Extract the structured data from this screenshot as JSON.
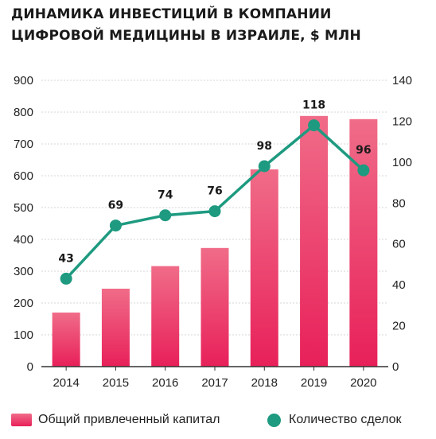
{
  "title": {
    "line1": "ДИНАМИКА ИНВЕСТИЦИЙ В КОМПАНИИ",
    "line2": "ЦИФРОВОЙ МЕДИЦИНЫ В ИЗРАИЛЕ, $ МЛН"
  },
  "colors": {
    "bar_top": "#f06c88",
    "bar_bottom": "#e8205a",
    "line": "#1e9a80",
    "grid": "#d5d5d5"
  },
  "chart_data": {
    "type": "bar",
    "title": "ДИНАМИКА ИНВЕСТИЦИЙ В КОМПАНИИ ЦИФРОВОЙ МЕДИЦИНЫ В ИЗРАИЛЕ, $ МЛН",
    "categories": [
      "2014",
      "2015",
      "2016",
      "2017",
      "2018",
      "2019",
      "2020"
    ],
    "series": [
      {
        "name": "Общий привлеченный капитал",
        "type": "bar",
        "axis": "left",
        "values": [
          170,
          245,
          316,
          373,
          620,
          788,
          778
        ]
      },
      {
        "name": "Количество сделок",
        "type": "line",
        "axis": "right",
        "values": [
          43,
          69,
          74,
          76,
          98,
          118,
          96
        ]
      }
    ],
    "y_left": {
      "min": 0,
      "max": 900,
      "ticks": [
        0,
        100,
        200,
        300,
        400,
        500,
        600,
        700,
        800,
        900
      ]
    },
    "y_right": {
      "min": 0,
      "max": 140,
      "ticks": [
        0,
        20,
        40,
        60,
        80,
        100,
        120,
        140
      ]
    },
    "grid": true,
    "legend_position": "bottom"
  }
}
